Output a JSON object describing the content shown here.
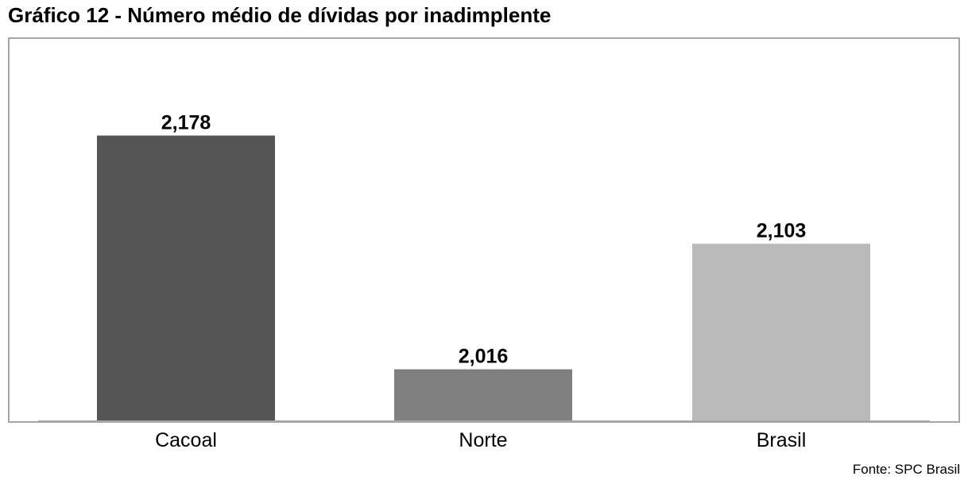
{
  "title": "Gráfico 12 - Número médio de dívidas por inadimplente",
  "source": "Fonte: SPC Brasil",
  "chart_data": {
    "type": "bar",
    "categories": [
      "Cacoal",
      "Norte",
      "Brasil"
    ],
    "values": [
      2.178,
      2.016,
      2.103
    ],
    "value_labels": [
      "2,178",
      "2,016",
      "2,103"
    ],
    "colors": [
      "#555555",
      "#808080",
      "#bababa"
    ],
    "ylim": [
      1.98,
      2.24
    ],
    "grid": false,
    "legend": "none"
  }
}
